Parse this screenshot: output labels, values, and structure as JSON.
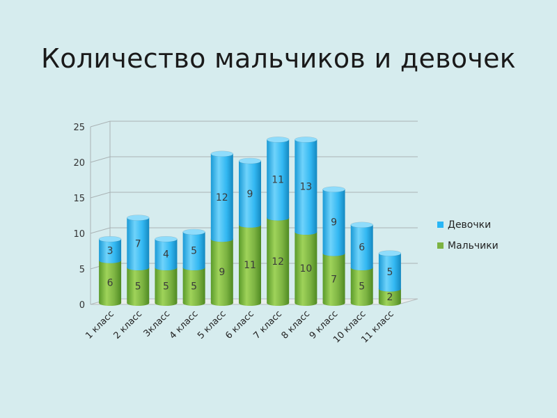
{
  "slide": {
    "title": "Количество мальчиков и девочек"
  },
  "chart_data": {
    "type": "bar",
    "stacked": true,
    "categories": [
      "1 класс",
      "2 класс",
      "3класс",
      "4 класс",
      "5 класс",
      "6 класс",
      "7 класс",
      "8 класс",
      "9 класс",
      "10 класс",
      "11 класс"
    ],
    "series": [
      {
        "name": "Мальчики",
        "values": [
          6,
          5,
          5,
          5,
          9,
          11,
          12,
          10,
          7,
          5,
          2
        ],
        "color": "#7cb342"
      },
      {
        "name": "Девочки",
        "values": [
          3,
          7,
          4,
          5,
          12,
          9,
          11,
          13,
          9,
          6,
          5
        ],
        "color": "#29b6f6"
      }
    ],
    "legend_order": [
      "Девочки",
      "Мальчики"
    ],
    "ylim": [
      0,
      25
    ],
    "yticks": [
      0,
      5,
      10,
      15,
      20,
      25
    ],
    "grid": true,
    "legend_position": "right"
  }
}
